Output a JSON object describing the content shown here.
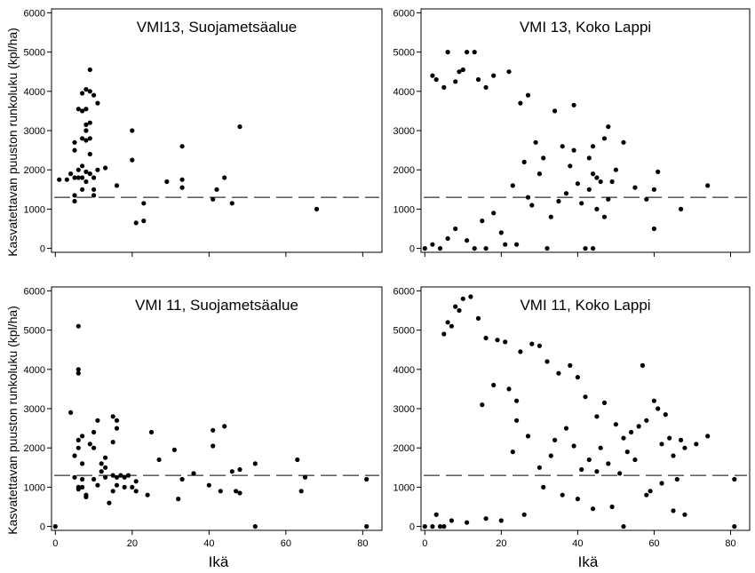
{
  "figure": {
    "ylabel": "Kasvatettavan puuston runkoluku (kpl/ha)",
    "xlabel": "Ikä"
  },
  "chart_data": [
    {
      "type": "scatter",
      "title": "VMI13, Suojametsäalue",
      "xlabel": "Ikä",
      "ylabel": "Kasvatettavan puuston runkoluku (kpl/ha)",
      "xlim": [
        -1,
        85
      ],
      "ylim": [
        -100,
        6100
      ],
      "xticks": [
        0,
        20,
        40,
        60,
        80
      ],
      "xticklabels": [
        "",
        "",
        "",
        "",
        ""
      ],
      "yticks": [
        0,
        1000,
        2000,
        3000,
        4000,
        5000,
        6000
      ],
      "yticklabels": [
        "0",
        "1000",
        "2000",
        "3000",
        "4000",
        "5000",
        "6000"
      ],
      "reference_line": 1300,
      "grid": false,
      "points": [
        [
          1,
          1750
        ],
        [
          3,
          1750
        ],
        [
          4,
          1900
        ],
        [
          5,
          1350
        ],
        [
          5,
          1200
        ],
        [
          5,
          2500
        ],
        [
          5,
          2700
        ],
        [
          5,
          1800
        ],
        [
          6,
          2000
        ],
        [
          6,
          1800
        ],
        [
          6,
          3550
        ],
        [
          7,
          2800
        ],
        [
          7,
          3500
        ],
        [
          7,
          3950
        ],
        [
          7,
          1500
        ],
        [
          7,
          1800
        ],
        [
          7,
          2100
        ],
        [
          8,
          4050
        ],
        [
          8,
          3000
        ],
        [
          8,
          2750
        ],
        [
          8,
          3150
        ],
        [
          8,
          3550
        ],
        [
          8,
          1950
        ],
        [
          8,
          1700
        ],
        [
          9,
          4550
        ],
        [
          9,
          4000
        ],
        [
          9,
          2800
        ],
        [
          9,
          3200
        ],
        [
          9,
          2400
        ],
        [
          9,
          1900
        ],
        [
          10,
          1350
        ],
        [
          10,
          1800
        ],
        [
          10,
          3900
        ],
        [
          10,
          1500
        ],
        [
          11,
          3700
        ],
        [
          11,
          2000
        ],
        [
          13,
          2050
        ],
        [
          16,
          1600
        ],
        [
          20,
          3000
        ],
        [
          20,
          2250
        ],
        [
          21,
          650
        ],
        [
          23,
          1150
        ],
        [
          23,
          700
        ],
        [
          29,
          1700
        ],
        [
          33,
          2600
        ],
        [
          33,
          1750
        ],
        [
          33,
          1550
        ],
        [
          41,
          1250
        ],
        [
          42,
          1500
        ],
        [
          44,
          1800
        ],
        [
          46,
          1150
        ],
        [
          48,
          3100
        ],
        [
          68,
          1000
        ]
      ]
    },
    {
      "type": "scatter",
      "title": "VMI 13, Koko Lappi",
      "xlabel": "Ikä",
      "ylabel": "",
      "xlim": [
        -1,
        85
      ],
      "ylim": [
        -100,
        6100
      ],
      "xticks": [
        0,
        20,
        40,
        60,
        80
      ],
      "xticklabels": [
        "",
        "",
        "",
        "",
        ""
      ],
      "yticks": [
        0,
        1000,
        2000,
        3000,
        4000,
        5000,
        6000
      ],
      "yticklabels": [
        "0",
        "1000",
        "2000",
        "3000",
        "4000",
        "5000",
        "6000"
      ],
      "reference_line": 1300,
      "grid": false,
      "points": [
        [
          0,
          0
        ],
        [
          2,
          4400
        ],
        [
          3,
          4300
        ],
        [
          6,
          5000
        ],
        [
          11,
          5000
        ],
        [
          13,
          5000
        ],
        [
          9,
          4500
        ],
        [
          10,
          4550
        ],
        [
          22,
          4500
        ],
        [
          18,
          4400
        ],
        [
          5,
          4100
        ],
        [
          8,
          4250
        ],
        [
          14,
          4300
        ],
        [
          16,
          4100
        ],
        [
          25,
          3700
        ],
        [
          27,
          3900
        ],
        [
          34,
          3500
        ],
        [
          39,
          3650
        ],
        [
          43,
          2300
        ],
        [
          44,
          1900
        ],
        [
          45,
          1800
        ],
        [
          46,
          1700
        ],
        [
          48,
          3100
        ],
        [
          50,
          2000
        ],
        [
          47,
          2800
        ],
        [
          43,
          1500
        ],
        [
          45,
          1000
        ],
        [
          47,
          800
        ],
        [
          49,
          1700
        ],
        [
          52,
          2700
        ],
        [
          48,
          1250
        ],
        [
          55,
          1550
        ],
        [
          58,
          1250
        ],
        [
          60,
          1500
        ],
        [
          61,
          1950
        ],
        [
          60,
          500
        ],
        [
          67,
          1000
        ],
        [
          74,
          1600
        ],
        [
          32,
          0
        ],
        [
          42,
          0
        ],
        [
          44,
          0
        ],
        [
          21,
          100
        ],
        [
          24,
          100
        ],
        [
          4,
          0
        ],
        [
          2,
          100
        ],
        [
          13,
          0
        ],
        [
          16,
          0
        ],
        [
          11,
          200
        ],
        [
          20,
          400
        ],
        [
          6,
          250
        ],
        [
          8,
          500
        ],
        [
          15,
          700
        ],
        [
          18,
          900
        ],
        [
          28,
          1100
        ],
        [
          35,
          1200
        ],
        [
          36,
          2600
        ],
        [
          38,
          2100
        ],
        [
          29,
          2700
        ],
        [
          31,
          2300
        ],
        [
          40,
          1650
        ],
        [
          41,
          1150
        ],
        [
          33,
          800
        ],
        [
          27,
          1300
        ],
        [
          23,
          1600
        ],
        [
          26,
          2200
        ],
        [
          30,
          1900
        ],
        [
          37,
          1400
        ],
        [
          39,
          2500
        ],
        [
          44,
          2600
        ]
      ]
    },
    {
      "type": "scatter",
      "title": "VMI 11, Suojametsäalue",
      "xlabel": "Ikä",
      "ylabel": "Kasvatettavan puuston runkoluku (kpl/ha)",
      "xlim": [
        -1,
        85
      ],
      "ylim": [
        -100,
        6100
      ],
      "xticks": [
        0,
        20,
        40,
        60,
        80
      ],
      "xticklabels": [
        "0",
        "20",
        "40",
        "60",
        "80"
      ],
      "yticks": [
        0,
        1000,
        2000,
        3000,
        4000,
        5000,
        6000
      ],
      "yticklabels": [
        "0",
        "1000",
        "2000",
        "3000",
        "4000",
        "5000",
        "6000"
      ],
      "reference_line": 1300,
      "grid": false,
      "points": [
        [
          0,
          0
        ],
        [
          4,
          2900
        ],
        [
          5,
          1800
        ],
        [
          5,
          1250
        ],
        [
          6,
          5100
        ],
        [
          6,
          4000
        ],
        [
          6,
          3900
        ],
        [
          6,
          2200
        ],
        [
          6,
          2000
        ],
        [
          6,
          1000
        ],
        [
          6,
          950
        ],
        [
          7,
          2300
        ],
        [
          7,
          1600
        ],
        [
          7,
          1200
        ],
        [
          7,
          1000
        ],
        [
          8,
          800
        ],
        [
          8,
          750
        ],
        [
          9,
          2100
        ],
        [
          10,
          2400
        ],
        [
          10,
          2000
        ],
        [
          10,
          1200
        ],
        [
          11,
          2700
        ],
        [
          11,
          1050
        ],
        [
          12,
          1600
        ],
        [
          12,
          1400
        ],
        [
          13,
          1750
        ],
        [
          13,
          1500
        ],
        [
          13,
          1250
        ],
        [
          14,
          600
        ],
        [
          15,
          2800
        ],
        [
          15,
          2150
        ],
        [
          15,
          1300
        ],
        [
          15,
          900
        ],
        [
          16,
          2700
        ],
        [
          16,
          2500
        ],
        [
          16,
          1250
        ],
        [
          16,
          1050
        ],
        [
          17,
          1300
        ],
        [
          18,
          1250
        ],
        [
          18,
          1000
        ],
        [
          19,
          1300
        ],
        [
          20,
          1000
        ],
        [
          21,
          1150
        ],
        [
          21,
          900
        ],
        [
          24,
          800
        ],
        [
          25,
          2400
        ],
        [
          27,
          1700
        ],
        [
          31,
          1950
        ],
        [
          32,
          700
        ],
        [
          33,
          1200
        ],
        [
          36,
          1350
        ],
        [
          40,
          1050
        ],
        [
          41,
          2450
        ],
        [
          41,
          2050
        ],
        [
          43,
          900
        ],
        [
          44,
          2550
        ],
        [
          46,
          1400
        ],
        [
          47,
          900
        ],
        [
          48,
          1450
        ],
        [
          48,
          850
        ],
        [
          52,
          1600
        ],
        [
          52,
          0
        ],
        [
          63,
          1700
        ],
        [
          64,
          900
        ],
        [
          65,
          1250
        ],
        [
          81,
          1200
        ],
        [
          81,
          0
        ]
      ]
    },
    {
      "type": "scatter",
      "title": "VMI 11, Koko Lappi",
      "xlabel": "Ikä",
      "ylabel": "",
      "xlim": [
        -1,
        85
      ],
      "ylim": [
        -100,
        6100
      ],
      "xticks": [
        0,
        20,
        40,
        60,
        80
      ],
      "xticklabels": [
        "0",
        "20",
        "40",
        "60",
        "80"
      ],
      "yticks": [
        0,
        1000,
        2000,
        3000,
        4000,
        5000,
        6000
      ],
      "yticklabels": [
        "0",
        "1000",
        "2000",
        "3000",
        "4000",
        "5000",
        "6000"
      ],
      "reference_line": 1300,
      "grid": false,
      "points": [
        [
          0,
          0
        ],
        [
          2,
          0
        ],
        [
          4,
          0
        ],
        [
          10,
          5800
        ],
        [
          12,
          5850
        ],
        [
          8,
          5600
        ],
        [
          9,
          5500
        ],
        [
          6,
          5200
        ],
        [
          7,
          5100
        ],
        [
          14,
          5300
        ],
        [
          5,
          4900
        ],
        [
          16,
          4800
        ],
        [
          19,
          4750
        ],
        [
          21,
          4700
        ],
        [
          25,
          4450
        ],
        [
          28,
          4650
        ],
        [
          30,
          4600
        ],
        [
          32,
          4200
        ],
        [
          35,
          3900
        ],
        [
          38,
          4100
        ],
        [
          40,
          3800
        ],
        [
          42,
          3300
        ],
        [
          45,
          2800
        ],
        [
          47,
          3150
        ],
        [
          50,
          2600
        ],
        [
          52,
          2250
        ],
        [
          54,
          2400
        ],
        [
          56,
          2550
        ],
        [
          57,
          4100
        ],
        [
          58,
          2700
        ],
        [
          60,
          3200
        ],
        [
          61,
          3000
        ],
        [
          62,
          2100
        ],
        [
          63,
          2850
        ],
        [
          64,
          2250
        ],
        [
          65,
          1800
        ],
        [
          66,
          1200
        ],
        [
          67,
          2200
        ],
        [
          68,
          2000
        ],
        [
          71,
          2100
        ],
        [
          74,
          2300
        ],
        [
          81,
          1200
        ],
        [
          81,
          0
        ],
        [
          52,
          0
        ],
        [
          58,
          800
        ],
        [
          59,
          900
        ],
        [
          62,
          1100
        ],
        [
          65,
          400
        ],
        [
          68,
          300
        ],
        [
          49,
          500
        ],
        [
          44,
          450
        ],
        [
          40,
          700
        ],
        [
          36,
          800
        ],
        [
          31,
          1000
        ],
        [
          26,
          300
        ],
        [
          20,
          150
        ],
        [
          16,
          200
        ],
        [
          11,
          100
        ],
        [
          7,
          150
        ],
        [
          3,
          300
        ],
        [
          5,
          0
        ],
        [
          45,
          1400
        ],
        [
          48,
          1600
        ],
        [
          51,
          1350
        ],
        [
          55,
          1700
        ],
        [
          53,
          1900
        ],
        [
          46,
          2000
        ],
        [
          43,
          1700
        ],
        [
          41,
          1450
        ],
        [
          39,
          2050
        ],
        [
          37,
          2500
        ],
        [
          34,
          2200
        ],
        [
          33,
          1800
        ],
        [
          30,
          1500
        ],
        [
          27,
          2300
        ],
        [
          24,
          2700
        ],
        [
          23,
          1900
        ],
        [
          22,
          3500
        ],
        [
          24,
          3200
        ],
        [
          18,
          3600
        ],
        [
          15,
          3100
        ]
      ]
    }
  ]
}
